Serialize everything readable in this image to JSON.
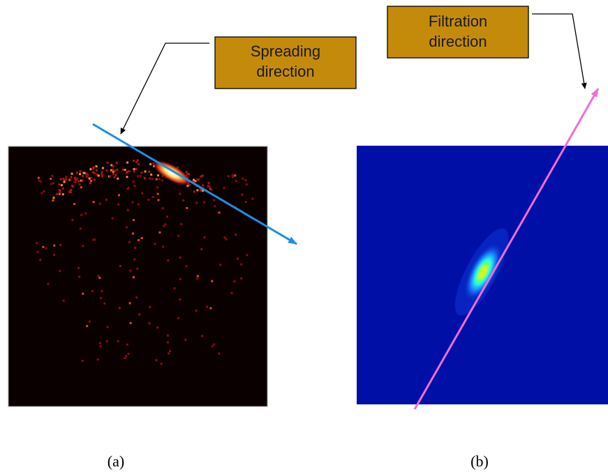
{
  "annotations": {
    "spreading": {
      "lines": [
        "Spreading",
        "direction"
      ]
    },
    "filtration": {
      "lines": [
        "Filtration",
        "direction"
      ]
    }
  },
  "captions": [
    "(a)",
    "(b)"
  ]
}
